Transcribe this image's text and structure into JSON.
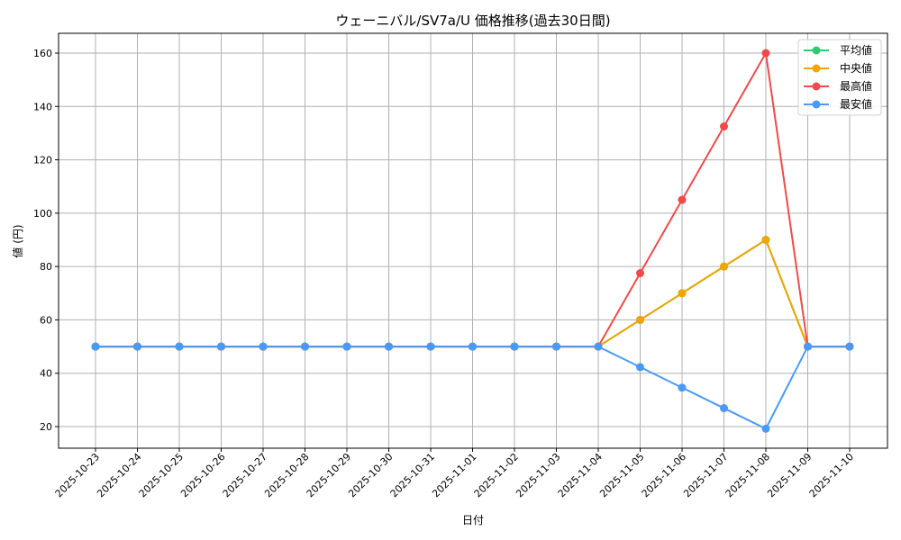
{
  "chart_data": {
    "type": "line",
    "title": "ウェーニバル/SV7a/U 価格推移(過去30日間)",
    "xlabel": "日付",
    "ylabel": "値 (円)",
    "ylim": [
      12.9,
      167.1
    ],
    "yticks": [
      20,
      40,
      60,
      80,
      100,
      120,
      140,
      160
    ],
    "grid": true,
    "legend_position": "upper right",
    "x": [
      "2025-10-23",
      "2025-10-24",
      "2025-10-25",
      "2025-10-26",
      "2025-10-27",
      "2025-10-28",
      "2025-10-29",
      "2025-10-30",
      "2025-10-31",
      "2025-11-01",
      "2025-11-02",
      "2025-11-03",
      "2025-11-04",
      "2025-11-05",
      "2025-11-06",
      "2025-11-07",
      "2025-11-08",
      "2025-11-09",
      "2025-11-10"
    ],
    "series": [
      {
        "name": "平均値",
        "color": "#2ecc71",
        "values": [
          50,
          50,
          50,
          50,
          50,
          50,
          50,
          50,
          50,
          50,
          50,
          50,
          50,
          60,
          70,
          80,
          90,
          50,
          50
        ]
      },
      {
        "name": "中央値",
        "color": "#f0a500",
        "values": [
          50,
          50,
          50,
          50,
          50,
          50,
          50,
          50,
          50,
          50,
          50,
          50,
          50,
          60,
          70,
          80,
          90,
          50,
          50
        ]
      },
      {
        "name": "最高値",
        "color": "#f04a4a",
        "values": [
          50,
          50,
          50,
          50,
          50,
          50,
          50,
          50,
          50,
          50,
          50,
          50,
          50,
          77.5,
          105,
          132.5,
          160,
          50,
          50
        ]
      },
      {
        "name": "最安値",
        "color": "#4a9af5",
        "values": [
          50,
          50,
          50,
          50,
          50,
          50,
          50,
          50,
          50,
          50,
          50,
          50,
          50,
          42.3,
          34.6,
          26.9,
          19.2,
          50,
          50
        ]
      }
    ]
  }
}
